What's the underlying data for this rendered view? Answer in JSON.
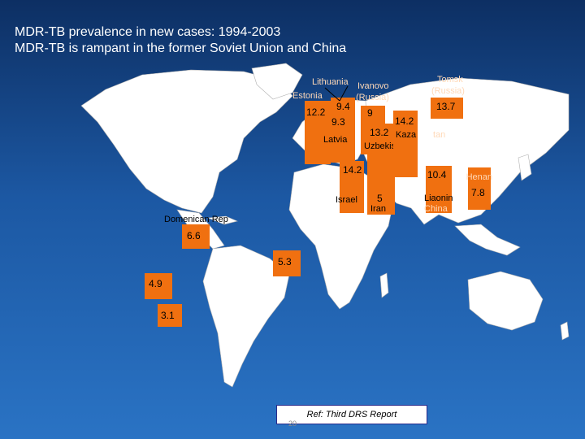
{
  "title_line1": "MDR-TB prevalence in new cases: 1994-2003",
  "title_line2": "MDR-TB is rampant in the former Soviet Union and China",
  "labels": {
    "lithuania": "Lithuania",
    "estonia": "Estonia",
    "ivanovo": "Ivanovo",
    "ivanovo_russia": "(Russia)",
    "latvia": "Latvia",
    "kazakhstan_a": "Kaza",
    "kazakhstan_b": "tan",
    "uzbekistan": "Uzbekistan",
    "tomsk": "Tomsk",
    "tomsk_russia": "(Russia)",
    "israel": "Israel",
    "iran": "Iran",
    "liaoning": "Liaonin",
    "liaoning_china": "China",
    "henan": "Henan",
    "dominican_rep": "Domenican Rep"
  },
  "values": {
    "estonia": "12.2",
    "lithuania": "9.4",
    "latvia": "9.3",
    "ivanovo": "9",
    "uzbekistan": "13.2",
    "kazakhstan": "14.2",
    "tomsk": "13.7",
    "israel": "14.2",
    "iran": "5",
    "liaoning": "10.4",
    "henan": "7.8",
    "dominican_rep": "6.6",
    "ecuador": "5.3",
    "peru": "4.9",
    "argentina": "3.1"
  },
  "reference": "Ref: Third DRS Report",
  "page_number": "20",
  "colors": {
    "bar": "#f07010",
    "land": "#ffffff",
    "ocean": "#1c58a3"
  }
}
